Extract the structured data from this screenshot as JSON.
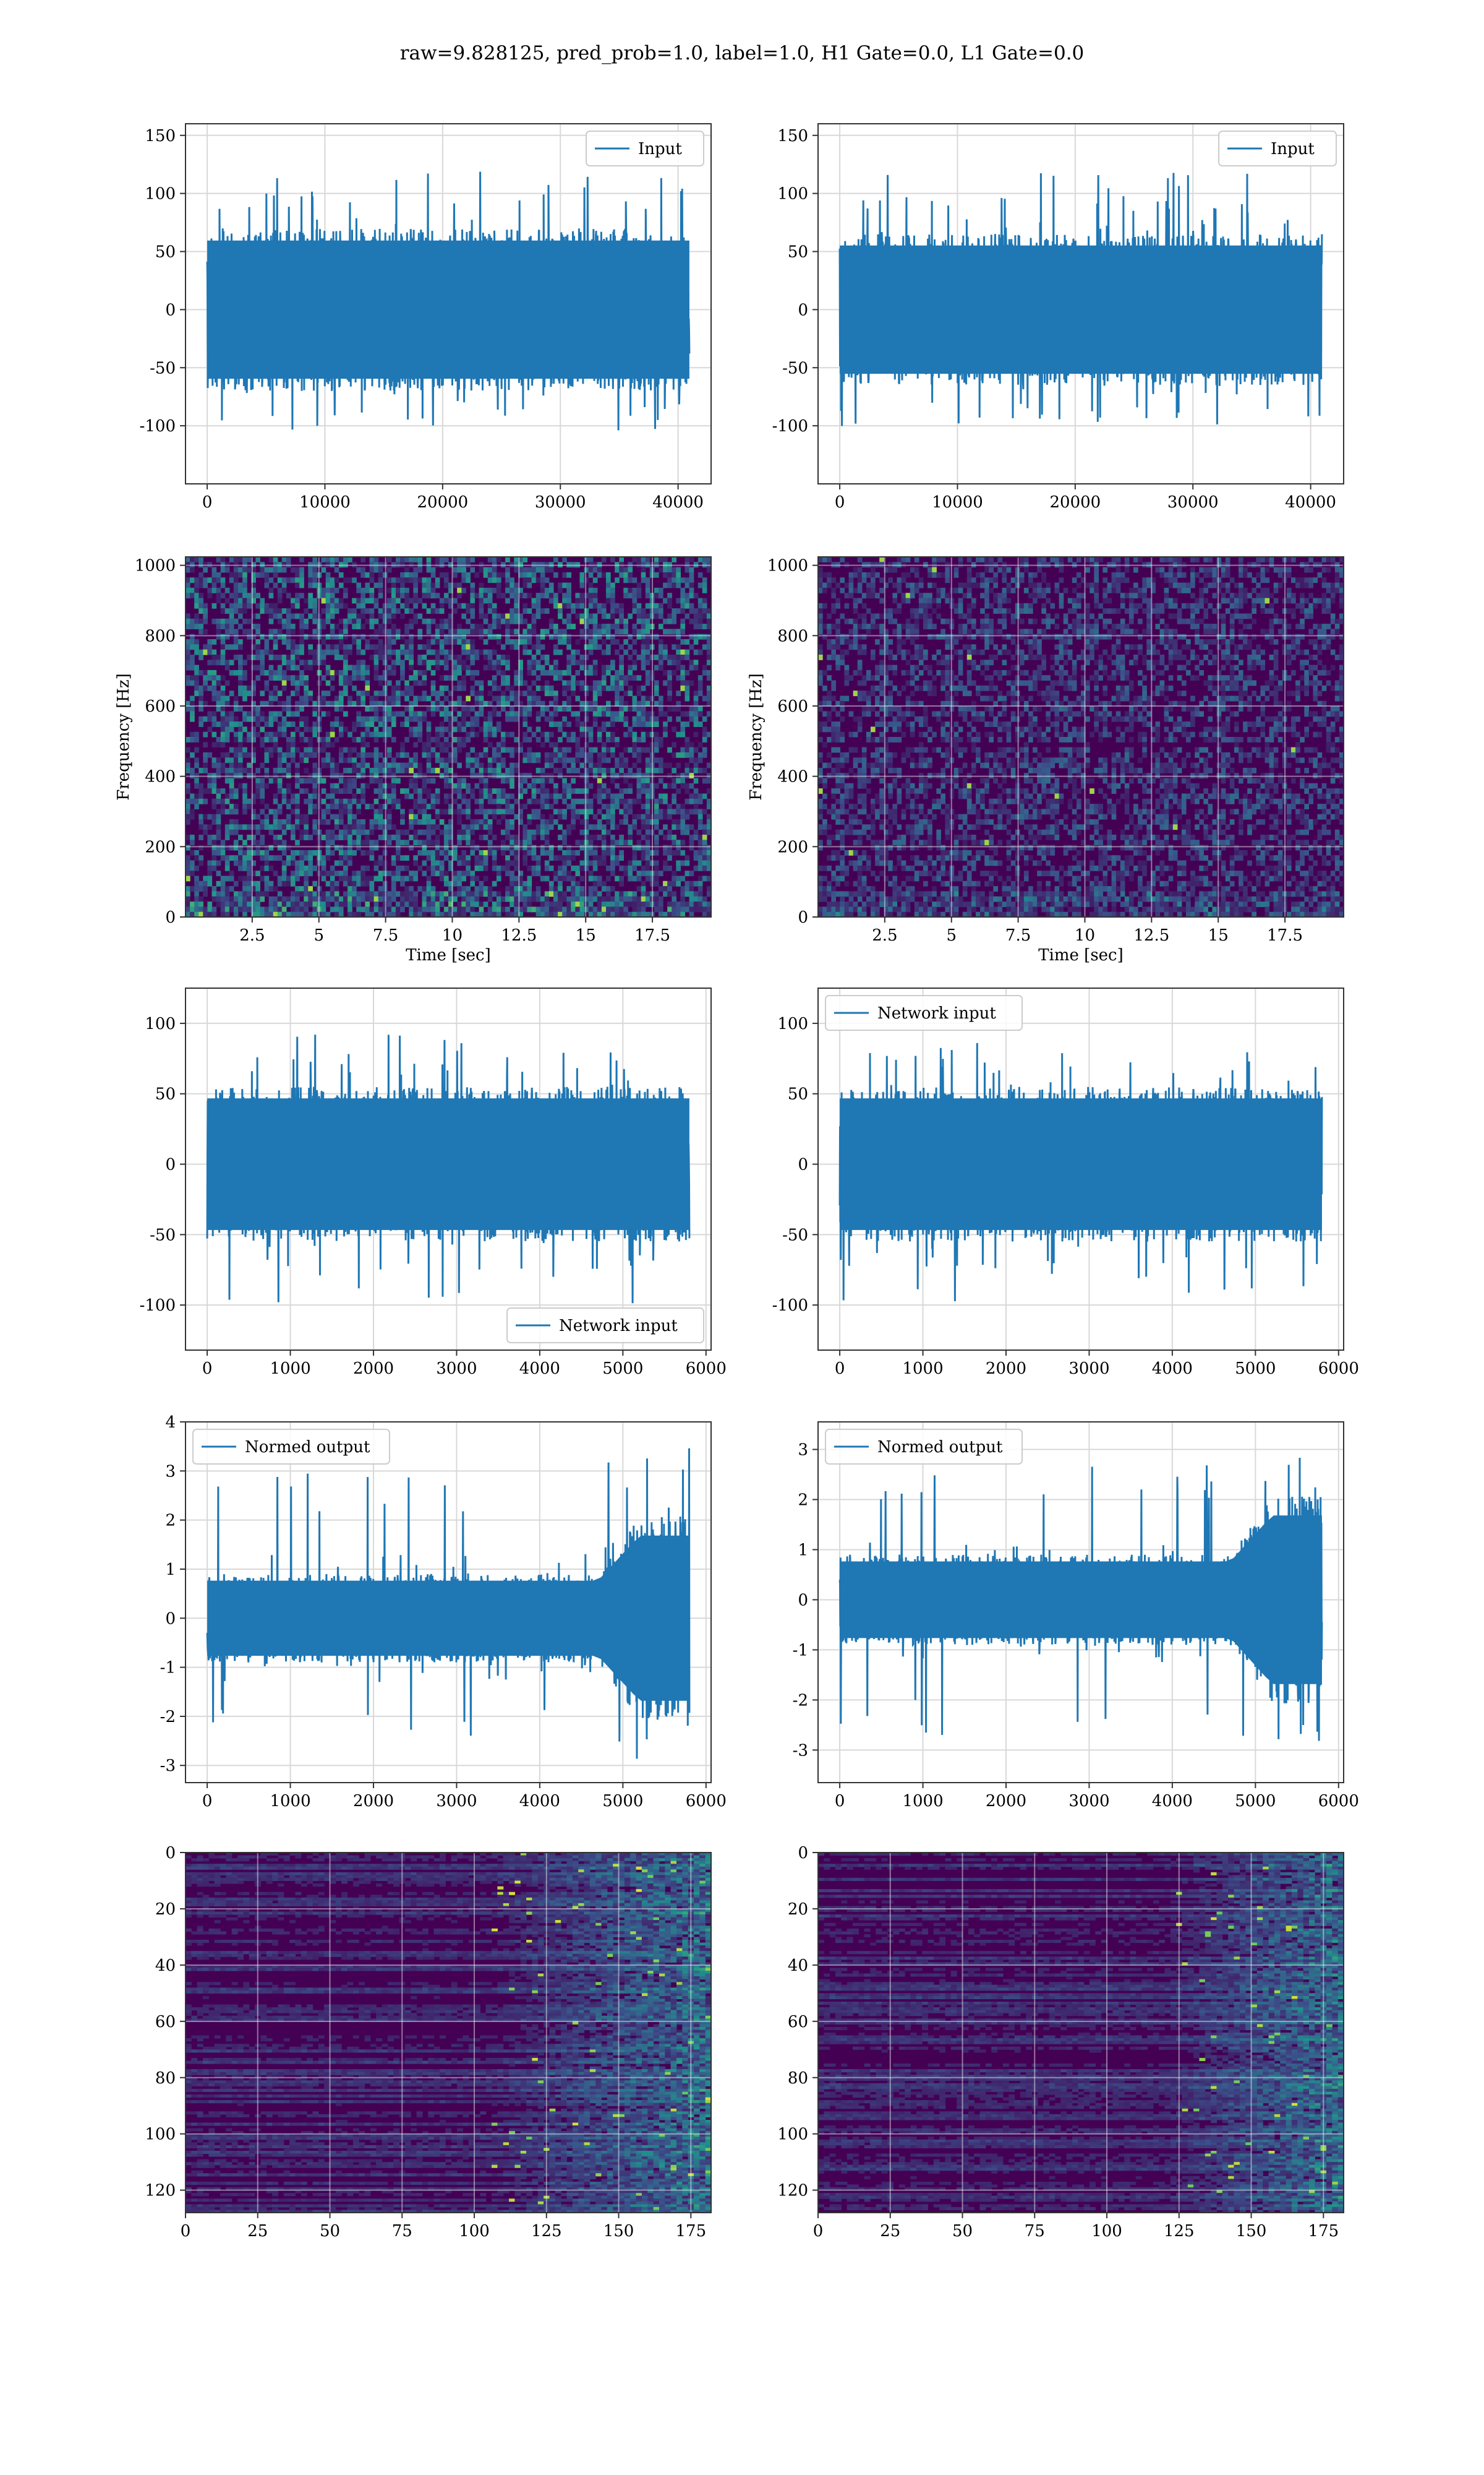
{
  "figure": {
    "suptitle": "raw=9.828125, pred_prob=1.0, label=1.0, H1 Gate=0.0, L1 Gate=0.0"
  },
  "colors": {
    "line": "#1f77b4",
    "grid": "#d8d8d8",
    "heat_low": "#440154",
    "heat_mid": "#31688e",
    "heat_high": "#b5de2b"
  },
  "chart_data": [
    {
      "id": "p1",
      "type": "line",
      "legend": "Input",
      "legend_loc": "upper right",
      "x_range": [
        0,
        40960
      ],
      "ylim": [
        -150,
        160
      ],
      "xticks": [
        0,
        10000,
        20000,
        30000,
        40000
      ],
      "yticks": [
        -100,
        -50,
        0,
        50,
        100,
        150
      ],
      "xlabel": "",
      "ylabel": "",
      "grid": true,
      "noise": {
        "band": 70,
        "max_spike": 150,
        "min_spike": -130,
        "growth": 0
      }
    },
    {
      "id": "p2",
      "type": "line",
      "legend": "Input",
      "legend_loc": "upper right",
      "x_range": [
        0,
        40960
      ],
      "ylim": [
        -150,
        160
      ],
      "xticks": [
        0,
        10000,
        20000,
        30000,
        40000
      ],
      "yticks": [
        -100,
        -50,
        0,
        50,
        100,
        150
      ],
      "xlabel": "",
      "ylabel": "",
      "grid": true,
      "noise": {
        "band": 65,
        "max_spike": 148,
        "min_spike": -128,
        "growth": 0
      }
    },
    {
      "id": "p3",
      "type": "heatmap",
      "xlim": [
        0,
        19.7
      ],
      "ylim": [
        0,
        1024
      ],
      "xticks": [
        2.5,
        5.0,
        7.5,
        10.0,
        12.5,
        15.0,
        17.5
      ],
      "yticks": [
        0,
        200,
        400,
        600,
        800,
        1000
      ],
      "xlabel": "Time [sec]",
      "ylabel": "Frequency [Hz]",
      "grid": true,
      "style": "spectrogram",
      "intensity": 0.55
    },
    {
      "id": "p4",
      "type": "heatmap",
      "xlim": [
        0,
        19.7
      ],
      "ylim": [
        0,
        1024
      ],
      "xticks": [
        2.5,
        5.0,
        7.5,
        10.0,
        12.5,
        15.0,
        17.5
      ],
      "yticks": [
        0,
        200,
        400,
        600,
        800,
        1000
      ],
      "xlabel": "Time [sec]",
      "ylabel": "Frequency [Hz]",
      "grid": true,
      "style": "spectrogram",
      "intensity": 0.35
    },
    {
      "id": "p5",
      "type": "line",
      "legend": "Network input",
      "legend_loc": "lower right",
      "x_range": [
        0,
        5800
      ],
      "ylim": [
        -132,
        125
      ],
      "xticks": [
        0,
        1000,
        2000,
        3000,
        4000,
        5000,
        6000
      ],
      "yticks": [
        -100,
        -50,
        0,
        50,
        100
      ],
      "xlabel": "",
      "ylabel": "",
      "grid": true,
      "noise": {
        "band": 55,
        "max_spike": 115,
        "min_spike": -125,
        "growth": 0
      }
    },
    {
      "id": "p6",
      "type": "line",
      "legend": "Network input",
      "legend_loc": "upper left",
      "x_range": [
        0,
        5800
      ],
      "ylim": [
        -132,
        125
      ],
      "xticks": [
        0,
        1000,
        2000,
        3000,
        4000,
        5000,
        6000
      ],
      "yticks": [
        -100,
        -50,
        0,
        50,
        100
      ],
      "xlabel": "",
      "ylabel": "",
      "grid": true,
      "noise": {
        "band": 55,
        "max_spike": 115,
        "min_spike": -125,
        "growth": 0
      }
    },
    {
      "id": "p7",
      "type": "line",
      "legend": "Normed output",
      "legend_loc": "upper left",
      "x_range": [
        0,
        5800
      ],
      "ylim": [
        -3.35,
        4.0
      ],
      "xticks": [
        0,
        1000,
        2000,
        3000,
        4000,
        5000,
        6000
      ],
      "yticks": [
        -3,
        -2,
        -1,
        0,
        1,
        2,
        3,
        4
      ],
      "xlabel": "",
      "ylabel": "",
      "grid": true,
      "noise": {
        "band": 0.9,
        "max_spike": 3.7,
        "min_spike": -3.0,
        "growth": 4700
      }
    },
    {
      "id": "p8",
      "type": "line",
      "legend": "Normed output",
      "legend_loc": "upper left",
      "x_range": [
        0,
        5800
      ],
      "ylim": [
        -3.65,
        3.55
      ],
      "xticks": [
        0,
        1000,
        2000,
        3000,
        4000,
        5000,
        6000
      ],
      "yticks": [
        -3,
        -2,
        -1,
        0,
        1,
        2,
        3
      ],
      "xlabel": "",
      "ylabel": "",
      "grid": true,
      "noise": {
        "band": 0.9,
        "max_spike": 3.4,
        "min_spike": -3.4,
        "growth": 4700
      }
    },
    {
      "id": "p9",
      "type": "heatmap",
      "xlim": [
        0,
        182
      ],
      "ylim": [
        128,
        0
      ],
      "xticks": [
        0,
        25,
        50,
        75,
        100,
        125,
        150,
        175
      ],
      "yticks": [
        0,
        20,
        40,
        60,
        80,
        100,
        120
      ],
      "xlabel": "",
      "ylabel": "",
      "grid": true,
      "style": "features",
      "onset": 105
    },
    {
      "id": "p10",
      "type": "heatmap",
      "xlim": [
        0,
        182
      ],
      "ylim": [
        128,
        0
      ],
      "xticks": [
        0,
        25,
        50,
        75,
        100,
        125,
        150,
        175
      ],
      "yticks": [
        0,
        20,
        40,
        60,
        80,
        100,
        120
      ],
      "xlabel": "",
      "ylabel": "",
      "grid": true,
      "style": "features",
      "onset": 120
    }
  ]
}
